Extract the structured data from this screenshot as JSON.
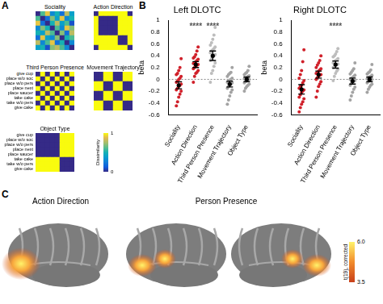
{
  "panel_labels": [
    "A",
    "B",
    "C"
  ],
  "chart_data": [
    {
      "type": "heatmap",
      "title": "Sociality",
      "cells": [
        [
          0,
          0.6,
          0.9,
          0.3,
          0.5,
          0.2,
          0.8,
          0.4
        ],
        [
          0.6,
          0,
          0.2,
          0.7,
          0.4,
          0.9,
          0.3,
          0.5
        ],
        [
          0.9,
          0.2,
          0,
          0.5,
          0.8,
          0.4,
          0.6,
          0.1
        ],
        [
          0.3,
          0.7,
          0.5,
          0,
          0.6,
          0.3,
          0.9,
          0.7
        ],
        [
          0.5,
          0.4,
          0.8,
          0.6,
          0,
          0.7,
          0.2,
          0.8
        ],
        [
          0.2,
          0.9,
          0.4,
          0.3,
          0.7,
          0,
          0.5,
          0.6
        ],
        [
          0.8,
          0.3,
          0.6,
          0.9,
          0.2,
          0.5,
          0,
          0.3
        ],
        [
          0.4,
          0.5,
          0.1,
          0.7,
          0.8,
          0.6,
          0.3,
          0
        ]
      ]
    },
    {
      "type": "heatmap",
      "title": "Action Direction",
      "cells": [
        [
          0,
          1,
          1,
          1,
          1,
          1,
          1,
          0
        ],
        [
          1,
          0,
          0,
          0,
          0,
          1,
          1,
          1
        ],
        [
          1,
          0,
          0,
          0,
          0,
          1,
          1,
          1
        ],
        [
          1,
          0,
          0,
          0,
          0,
          1,
          1,
          1
        ],
        [
          1,
          0,
          0,
          0,
          0,
          1,
          1,
          1
        ],
        [
          1,
          1,
          1,
          1,
          1,
          0,
          0,
          1
        ],
        [
          1,
          1,
          1,
          1,
          1,
          0,
          0,
          1
        ],
        [
          0,
          1,
          1,
          1,
          1,
          1,
          1,
          0
        ]
      ]
    },
    {
      "type": "heatmap",
      "title": "Third Person Presence",
      "categories": [
        "give cup",
        "place w/o soc",
        "place w/o pers",
        "place next",
        "place saucer",
        "take cake",
        "take w/o pers",
        "give cake"
      ],
      "cells": [
        [
          0,
          1,
          0,
          1,
          0,
          1,
          0,
          1
        ],
        [
          1,
          0,
          1,
          0,
          1,
          0,
          1,
          0
        ],
        [
          0,
          1,
          0,
          1,
          0,
          1,
          0,
          1
        ],
        [
          1,
          0,
          1,
          0,
          1,
          0,
          1,
          0
        ],
        [
          0,
          1,
          0,
          1,
          0,
          1,
          0,
          1
        ],
        [
          1,
          0,
          1,
          0,
          1,
          0,
          1,
          0
        ],
        [
          0,
          1,
          0,
          1,
          0,
          1,
          0,
          1
        ],
        [
          1,
          0,
          1,
          0,
          1,
          0,
          1,
          0
        ]
      ]
    },
    {
      "type": "heatmap",
      "title": "Movement Trajectory",
      "cells": [
        [
          0,
          0,
          1,
          1,
          0,
          0,
          1,
          1
        ],
        [
          0,
          0,
          1,
          1,
          0,
          0,
          1,
          1
        ],
        [
          1,
          1,
          0,
          0,
          1,
          1,
          0,
          0
        ],
        [
          1,
          1,
          0,
          0,
          1,
          1,
          0,
          0
        ],
        [
          0,
          0,
          1,
          1,
          0,
          0,
          1,
          1
        ],
        [
          0,
          0,
          1,
          1,
          0,
          0,
          1,
          1
        ],
        [
          1,
          1,
          0,
          0,
          1,
          1,
          0,
          0
        ],
        [
          1,
          1,
          0,
          0,
          1,
          1,
          0,
          0
        ]
      ]
    },
    {
      "type": "heatmap",
      "title": "Object Type",
      "categories": [
        "give cup",
        "place w/o soc",
        "place w/o pers",
        "place next",
        "place saucer",
        "take cake",
        "take w/o pers",
        "give cake"
      ],
      "cells": [
        [
          0,
          0,
          0,
          0,
          0,
          1,
          1,
          1
        ],
        [
          0,
          0,
          0,
          0,
          0,
          1,
          1,
          1
        ],
        [
          0,
          0,
          0,
          0,
          0,
          1,
          1,
          1
        ],
        [
          0,
          0,
          0,
          0,
          0,
          1,
          1,
          1
        ],
        [
          0,
          0,
          0,
          0,
          0,
          1,
          1,
          1
        ],
        [
          1,
          1,
          1,
          1,
          1,
          0,
          0,
          0
        ],
        [
          1,
          1,
          1,
          1,
          1,
          0,
          0,
          0
        ],
        [
          1,
          1,
          1,
          1,
          1,
          0,
          0,
          0
        ]
      ],
      "colorbar": {
        "label": "Dissimilarity",
        "range": [
          0,
          1
        ],
        "ticks": [
          0,
          1
        ]
      }
    },
    {
      "type": "strip",
      "title": "Left DLOTC",
      "ylabel": "beta",
      "categories": [
        "Sociality",
        "Action Direction",
        "Third Person Presence",
        "Movement Trajectory",
        "Object Type"
      ],
      "colors": [
        "#d0202a",
        "#d0202a",
        "#bdbdbd",
        "#a3a3a3",
        "#a3a3a3"
      ],
      "points": [
        [
          -0.45,
          -0.38,
          -0.3,
          -0.25,
          -0.2,
          -0.18,
          -0.15,
          -0.12,
          -0.1,
          -0.08,
          -0.05,
          -0.03,
          0.0,
          0.02,
          0.05,
          0.08,
          0.1,
          0.15,
          0.2,
          0.35
        ],
        [
          -0.05,
          0.05,
          0.1,
          0.12,
          0.15,
          0.18,
          0.2,
          0.22,
          0.24,
          0.25,
          0.27,
          0.28,
          0.3,
          0.32,
          0.34,
          0.36,
          0.38,
          0.42,
          0.48,
          0.55
        ],
        [
          -0.05,
          0.1,
          0.15,
          0.22,
          0.28,
          0.32,
          0.35,
          0.38,
          0.4,
          0.42,
          0.45,
          0.48,
          0.5,
          0.52,
          0.55,
          0.58,
          0.62,
          0.68,
          0.75,
          0.88
        ],
        [
          -0.42,
          -0.35,
          -0.28,
          -0.22,
          -0.18,
          -0.15,
          -0.12,
          -0.1,
          -0.08,
          -0.06,
          -0.05,
          -0.03,
          -0.01,
          0.0,
          0.02,
          0.05,
          0.08,
          0.1,
          0.12,
          0.2
        ],
        [
          -0.2,
          -0.15,
          -0.12,
          -0.1,
          -0.08,
          -0.06,
          -0.04,
          -0.03,
          -0.01,
          0.0,
          0.01,
          0.02,
          0.03,
          0.05,
          0.06,
          0.08,
          0.1,
          0.12,
          0.15,
          0.22
        ]
      ],
      "means": [
        -0.1,
        0.25,
        0.4,
        -0.08,
        0.0
      ],
      "errors": [
        0.06,
        0.05,
        0.08,
        0.05,
        0.04
      ],
      "significance": [
        null,
        "****",
        "****",
        null,
        null
      ],
      "ylim": [
        -0.6,
        1
      ],
      "yticks": [
        -0.6,
        -0.4,
        -0.2,
        0,
        0.2,
        0.4,
        0.6,
        0.8,
        1
      ],
      "grid": false
    },
    {
      "type": "strip",
      "title": "Right DLOTC",
      "ylabel": "beta",
      "categories": [
        "Sociality",
        "Action Direction",
        "Third Person Presence",
        "Movement Trajectory",
        "Object Type"
      ],
      "colors": [
        "#d0202a",
        "#d0202a",
        "#bdbdbd",
        "#a3a3a3",
        "#a3a3a3"
      ],
      "points": [
        [
          -0.55,
          -0.48,
          -0.42,
          -0.38,
          -0.33,
          -0.3,
          -0.26,
          -0.22,
          -0.2,
          -0.18,
          -0.15,
          -0.12,
          -0.1,
          -0.06,
          -0.02,
          0.02,
          0.08,
          0.15,
          0.3,
          0.5
        ],
        [
          -0.3,
          -0.2,
          -0.12,
          -0.08,
          -0.04,
          0.0,
          0.03,
          0.05,
          0.07,
          0.08,
          0.1,
          0.12,
          0.14,
          0.16,
          0.18,
          0.2,
          0.24,
          0.28,
          0.32,
          0.4
        ],
        [
          -0.02,
          0.05,
          0.1,
          0.14,
          0.17,
          0.2,
          0.22,
          0.24,
          0.25,
          0.26,
          0.28,
          0.3,
          0.32,
          0.33,
          0.35,
          0.38,
          0.4,
          0.43,
          0.47,
          0.52
        ],
        [
          -0.35,
          -0.28,
          -0.22,
          -0.17,
          -0.13,
          -0.1,
          -0.07,
          -0.05,
          -0.03,
          -0.02,
          0.0,
          0.02,
          0.03,
          0.05,
          0.07,
          0.09,
          0.12,
          0.15,
          0.18,
          0.28
        ],
        [
          -0.22,
          -0.17,
          -0.13,
          -0.1,
          -0.08,
          -0.06,
          -0.04,
          -0.02,
          -0.01,
          0.0,
          0.01,
          0.02,
          0.04,
          0.05,
          0.07,
          0.09,
          0.11,
          0.13,
          0.16,
          0.25
        ]
      ],
      "means": [
        -0.17,
        0.08,
        0.25,
        -0.03,
        0.0
      ],
      "errors": [
        0.08,
        0.06,
        0.06,
        0.05,
        0.04
      ],
      "significance": [
        null,
        null,
        "****",
        null,
        null
      ],
      "ylim": [
        -0.6,
        1
      ],
      "yticks": [
        -0.6,
        -0.4,
        -0.2,
        0,
        0.2,
        0.4,
        0.6,
        0.8,
        1
      ],
      "grid": false
    }
  ],
  "brain_maps": {
    "titles": [
      "Action Direction",
      "Person Presence"
    ],
    "colorbar": {
      "label": "t(19), corrected",
      "range": [
        3.5,
        6.0
      ],
      "ticks": [
        {
          "value": 6,
          "label": "6.0"
        },
        {
          "value": 3.5,
          "label": "3.5"
        }
      ]
    }
  }
}
